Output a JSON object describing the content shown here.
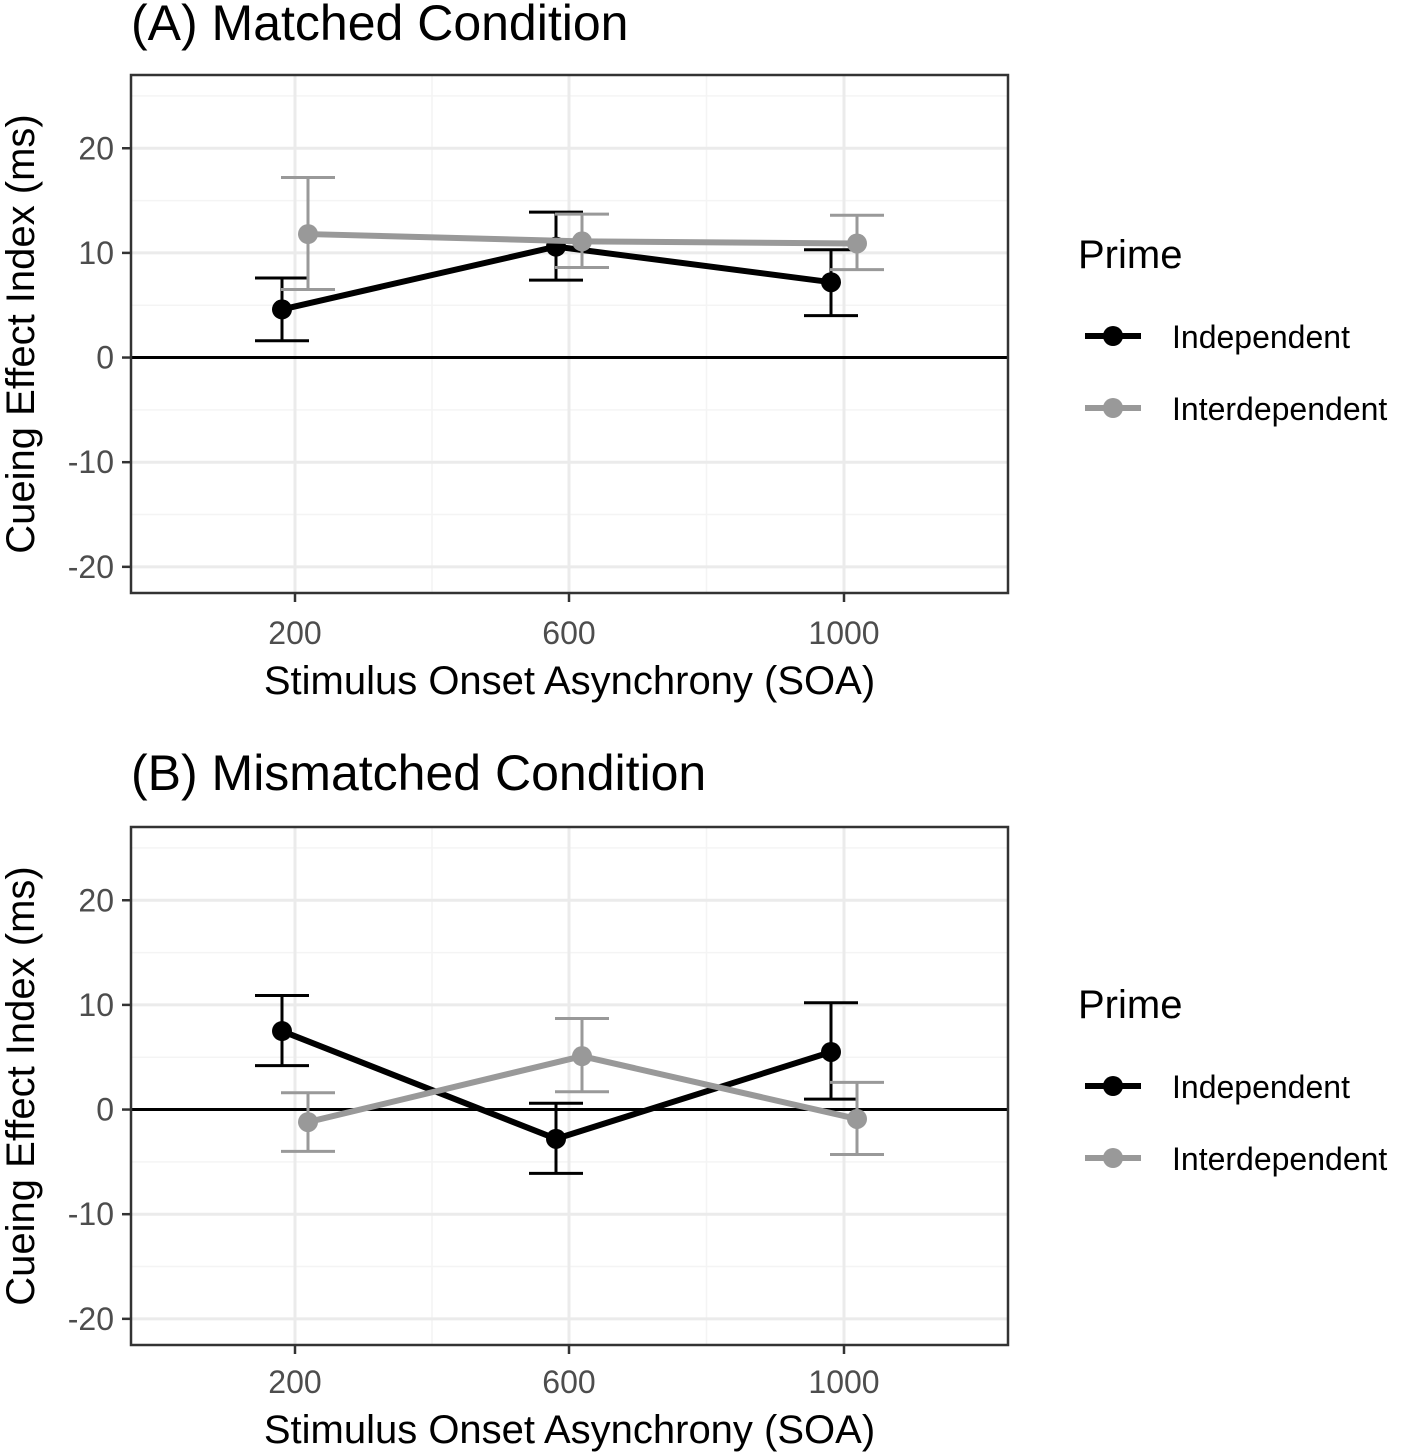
{
  "colors": {
    "independent": "#000000",
    "interdependent": "#999999",
    "grid_major": "#ebebeb",
    "grid_minor": "#f4f4f4",
    "border": "#333333"
  },
  "legend": {
    "title": "Prime",
    "entries": [
      "Independent",
      "Interdependent"
    ],
    "placement": "right"
  },
  "chart_data": [
    {
      "type": "line",
      "title": "(A) Matched Condition",
      "xlabel": "Stimulus Onset Asynchrony (SOA)",
      "ylabel": "Cueing Effect Index (ms)",
      "categories": [
        "200",
        "600",
        "1000"
      ],
      "yticks": [
        -20,
        -10,
        0,
        10,
        20
      ],
      "ylim": [
        -22.5,
        27
      ],
      "reference_line": 0,
      "grid": true,
      "series": [
        {
          "name": "Independent",
          "color": "#000000",
          "values": [
            4.6,
            10.6,
            7.2
          ],
          "lower": [
            1.6,
            7.4,
            4.0
          ],
          "upper": [
            7.6,
            13.9,
            10.3
          ]
        },
        {
          "name": "Interdependent",
          "color": "#999999",
          "values": [
            11.8,
            11.1,
            10.9
          ],
          "lower": [
            6.5,
            8.6,
            8.4
          ],
          "upper": [
            17.2,
            13.7,
            13.6
          ]
        }
      ]
    },
    {
      "type": "line",
      "title": "(B) Mismatched Condition",
      "xlabel": "Stimulus Onset Asynchrony (SOA)",
      "ylabel": "Cueing Effect Index (ms)",
      "categories": [
        "200",
        "600",
        "1000"
      ],
      "yticks": [
        -20,
        -10,
        0,
        10,
        20
      ],
      "ylim": [
        -22.5,
        27
      ],
      "reference_line": 0,
      "grid": true,
      "series": [
        {
          "name": "Independent",
          "color": "#000000",
          "values": [
            7.5,
            -2.8,
            5.5
          ],
          "lower": [
            4.2,
            -6.1,
            1.0
          ],
          "upper": [
            10.9,
            0.6,
            10.2
          ]
        },
        {
          "name": "Interdependent",
          "color": "#999999",
          "values": [
            -1.2,
            5.1,
            -0.9
          ],
          "lower": [
            -4.0,
            1.7,
            -4.3
          ],
          "upper": [
            1.6,
            8.7,
            2.6
          ]
        }
      ]
    }
  ]
}
